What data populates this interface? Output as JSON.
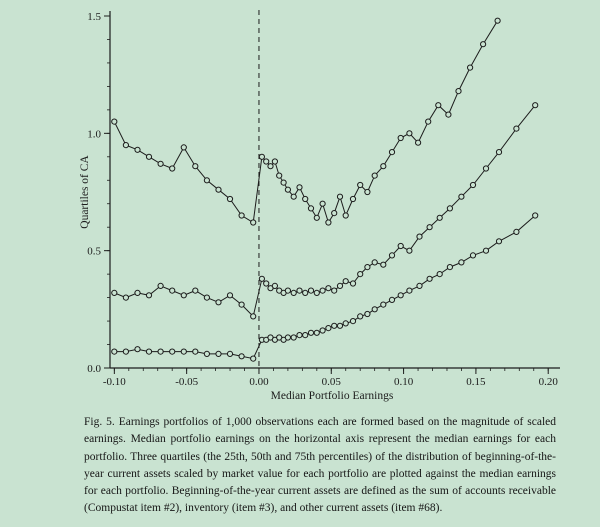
{
  "colors": {
    "background": "#c9e3d1",
    "ink": "#1c1c1c"
  },
  "figure": {
    "caption": "Fig. 5. Earnings portfolios of 1,000 observations each are formed based on the magnitude of scaled earnings. Median portfolio earnings on the horizontal axis represent the median earnings for each portfolio. Three quartiles (the 25th, 50th and 75th percentiles) of the distribution of beginning-of-the-year current assets scaled by market value for each portfolio are plotted against the median earnings for each portfolio. Beginning-of-the-year current assets are defined as the sum of accounts receivable (Compustat item #2), inventory (item #3), and other current assets (item #68)."
  },
  "chart_data": {
    "type": "line",
    "title": "",
    "xlabel": "Median Portfolio Earnings",
    "ylabel": "Quartiles of CA",
    "xlim": [
      -0.103,
      0.204
    ],
    "ylim": [
      0,
      1.5
    ],
    "x_ticks": [
      -0.1,
      -0.05,
      0.0,
      0.05,
      0.1,
      0.15,
      0.2
    ],
    "x_tick_labels": [
      "-0.10",
      "-0.05",
      "0.00",
      "0.05",
      "0.10",
      "0.15",
      "0.20"
    ],
    "x_minor_tick_step": 0.01,
    "y_ticks": [
      0.0,
      0.5,
      1.0,
      1.5
    ],
    "y_tick_labels": [
      "0.0",
      "0.5",
      "1.0",
      "1.5"
    ],
    "y_minor_tick_step": 0.1,
    "reference_line_x": 0.0,
    "reference_line_style": "dashed",
    "grid": false,
    "legend": "none",
    "marker": "open-circle",
    "series": [
      {
        "name": "75th percentile",
        "x": [
          -0.1,
          -0.092,
          -0.084,
          -0.076,
          -0.068,
          -0.06,
          -0.052,
          -0.044,
          -0.036,
          -0.028,
          -0.02,
          -0.012,
          -0.004,
          0.002,
          0.005,
          0.008,
          0.011,
          0.014,
          0.017,
          0.02,
          0.024,
          0.028,
          0.032,
          0.036,
          0.04,
          0.044,
          0.048,
          0.052,
          0.056,
          0.06,
          0.065,
          0.07,
          0.075,
          0.08,
          0.086,
          0.092,
          0.098,
          0.104,
          0.11,
          0.117,
          0.124,
          0.131,
          0.138,
          0.146,
          0.155,
          0.165
        ],
        "y": [
          1.05,
          0.95,
          0.93,
          0.9,
          0.87,
          0.85,
          0.94,
          0.86,
          0.8,
          0.76,
          0.72,
          0.65,
          0.62,
          0.9,
          0.88,
          0.86,
          0.88,
          0.82,
          0.79,
          0.76,
          0.73,
          0.77,
          0.72,
          0.68,
          0.64,
          0.7,
          0.62,
          0.66,
          0.73,
          0.65,
          0.72,
          0.78,
          0.75,
          0.82,
          0.86,
          0.92,
          0.98,
          1.0,
          0.96,
          1.05,
          1.12,
          1.08,
          1.18,
          1.28,
          1.38,
          1.48
        ]
      },
      {
        "name": "50th percentile",
        "x": [
          -0.1,
          -0.092,
          -0.084,
          -0.076,
          -0.068,
          -0.06,
          -0.052,
          -0.044,
          -0.036,
          -0.028,
          -0.02,
          -0.012,
          -0.004,
          0.002,
          0.005,
          0.008,
          0.011,
          0.014,
          0.017,
          0.02,
          0.024,
          0.028,
          0.032,
          0.036,
          0.04,
          0.044,
          0.048,
          0.052,
          0.056,
          0.06,
          0.065,
          0.07,
          0.075,
          0.08,
          0.086,
          0.092,
          0.098,
          0.104,
          0.111,
          0.118,
          0.125,
          0.132,
          0.14,
          0.148,
          0.157,
          0.166,
          0.178,
          0.191
        ],
        "y": [
          0.32,
          0.3,
          0.32,
          0.31,
          0.35,
          0.33,
          0.31,
          0.33,
          0.3,
          0.28,
          0.31,
          0.27,
          0.22,
          0.38,
          0.36,
          0.34,
          0.35,
          0.33,
          0.32,
          0.33,
          0.32,
          0.33,
          0.32,
          0.33,
          0.32,
          0.33,
          0.34,
          0.33,
          0.35,
          0.37,
          0.36,
          0.4,
          0.43,
          0.45,
          0.44,
          0.48,
          0.52,
          0.5,
          0.56,
          0.6,
          0.64,
          0.68,
          0.73,
          0.78,
          0.85,
          0.92,
          1.02,
          1.12
        ]
      },
      {
        "name": "25th percentile",
        "x": [
          -0.1,
          -0.092,
          -0.084,
          -0.076,
          -0.068,
          -0.06,
          -0.052,
          -0.044,
          -0.036,
          -0.028,
          -0.02,
          -0.012,
          -0.004,
          0.002,
          0.005,
          0.008,
          0.011,
          0.014,
          0.017,
          0.02,
          0.024,
          0.028,
          0.032,
          0.036,
          0.04,
          0.044,
          0.048,
          0.052,
          0.056,
          0.06,
          0.065,
          0.07,
          0.075,
          0.08,
          0.086,
          0.092,
          0.098,
          0.104,
          0.111,
          0.118,
          0.125,
          0.132,
          0.14,
          0.148,
          0.157,
          0.166,
          0.178,
          0.191
        ],
        "y": [
          0.07,
          0.07,
          0.08,
          0.07,
          0.07,
          0.07,
          0.07,
          0.07,
          0.06,
          0.06,
          0.06,
          0.05,
          0.04,
          0.12,
          0.12,
          0.13,
          0.12,
          0.13,
          0.12,
          0.13,
          0.13,
          0.14,
          0.14,
          0.15,
          0.15,
          0.16,
          0.17,
          0.18,
          0.18,
          0.19,
          0.2,
          0.22,
          0.23,
          0.25,
          0.27,
          0.29,
          0.31,
          0.33,
          0.35,
          0.38,
          0.4,
          0.43,
          0.45,
          0.48,
          0.5,
          0.54,
          0.58,
          0.65
        ]
      }
    ]
  }
}
